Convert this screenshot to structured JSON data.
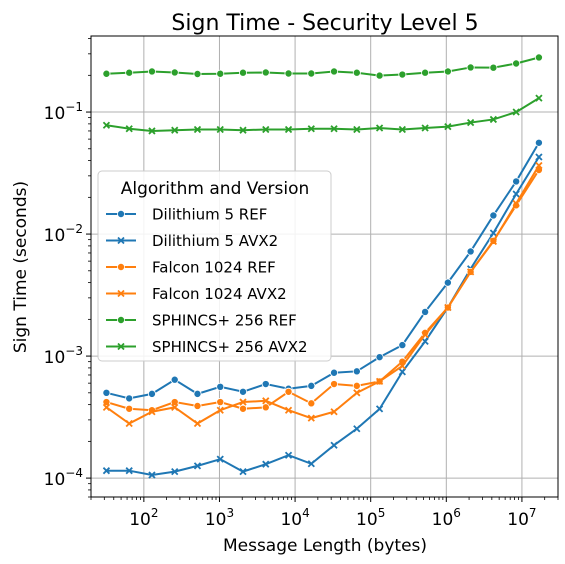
{
  "chart_data": {
    "type": "line",
    "title": "Sign Time - Security Level 5",
    "xlabel": "Message Length (bytes)",
    "ylabel": "Sign Time (seconds)",
    "x_scale": "log",
    "y_scale": "log",
    "xlim": [
      20,
      30000000
    ],
    "ylim": [
      7e-05,
      0.42
    ],
    "x_ticks": [
      {
        "base": "10",
        "exp": "2",
        "value": 100
      },
      {
        "base": "10",
        "exp": "3",
        "value": 1000
      },
      {
        "base": "10",
        "exp": "4",
        "value": 10000
      },
      {
        "base": "10",
        "exp": "5",
        "value": 100000
      },
      {
        "base": "10",
        "exp": "6",
        "value": 1000000
      },
      {
        "base": "10",
        "exp": "7",
        "value": 10000000
      }
    ],
    "y_ticks": [
      {
        "base": "10",
        "exp": "−4",
        "value": 0.0001
      },
      {
        "base": "10",
        "exp": "−3",
        "value": 0.001
      },
      {
        "base": "10",
        "exp": "−2",
        "value": 0.01
      },
      {
        "base": "10",
        "exp": "−1",
        "value": 0.1
      }
    ],
    "grid": true,
    "legend": {
      "title": "Algorithm and Version",
      "placement": "center-left"
    },
    "x": [
      32,
      64,
      128,
      256,
      512,
      1024,
      2048,
      4096,
      8192,
      16384,
      32768,
      65536,
      131072,
      262144,
      524288,
      1048576,
      2097152,
      4194304,
      8388608,
      16777216
    ],
    "series": [
      {
        "name": "Dilithium 5 REF",
        "color": "#1f77b4",
        "marker": "circle",
        "values": [
          0.0005,
          0.00045,
          0.00049,
          0.00064,
          0.00049,
          0.00056,
          0.00051,
          0.00059,
          0.00054,
          0.00057,
          0.00073,
          0.00075,
          0.00098,
          0.00123,
          0.0023,
          0.004,
          0.0072,
          0.0142,
          0.027,
          0.056
        ]
      },
      {
        "name": "Dilithium 5 AVX2",
        "color": "#1f77b4",
        "marker": "x",
        "values": [
          0.000115,
          0.000115,
          0.000106,
          0.000113,
          0.000126,
          0.000143,
          0.000113,
          0.00013,
          0.000154,
          0.000131,
          0.000186,
          0.000254,
          0.000369,
          0.000742,
          0.00132,
          0.0025,
          0.0052,
          0.0102,
          0.0213,
          0.0428
        ]
      },
      {
        "name": "Falcon 1024 REF",
        "color": "#ff7f0e",
        "marker": "circle",
        "values": [
          0.00042,
          0.00037,
          0.00036,
          0.00042,
          0.00039,
          0.00042,
          0.00037,
          0.00038,
          0.00051,
          0.00041,
          0.00059,
          0.00057,
          0.00062,
          0.0009,
          0.00155,
          0.0025,
          0.0049,
          0.0088,
          0.0172,
          0.0335
        ]
      },
      {
        "name": "Falcon 1024 AVX2",
        "color": "#ff7f0e",
        "marker": "x",
        "values": [
          0.00038,
          0.00028,
          0.00035,
          0.00038,
          0.00028,
          0.00036,
          0.00042,
          0.00043,
          0.00036,
          0.00031,
          0.00035,
          0.0005,
          0.00062,
          0.00083,
          0.0015,
          0.0025,
          0.0049,
          0.0087,
          0.0178,
          0.0365
        ]
      },
      {
        "name": "SPHINCS+ 256 REF",
        "color": "#2ca02c",
        "marker": "circle",
        "values": [
          0.206,
          0.21,
          0.215,
          0.211,
          0.205,
          0.206,
          0.21,
          0.211,
          0.207,
          0.207,
          0.215,
          0.21,
          0.199,
          0.203,
          0.21,
          0.215,
          0.232,
          0.231,
          0.25,
          0.28
        ]
      },
      {
        "name": "SPHINCS+ 256 AVX2",
        "color": "#2ca02c",
        "marker": "x",
        "values": [
          0.078,
          0.073,
          0.07,
          0.071,
          0.072,
          0.072,
          0.071,
          0.072,
          0.072,
          0.073,
          0.073,
          0.072,
          0.074,
          0.072,
          0.074,
          0.076,
          0.082,
          0.087,
          0.1,
          0.13
        ]
      }
    ]
  }
}
